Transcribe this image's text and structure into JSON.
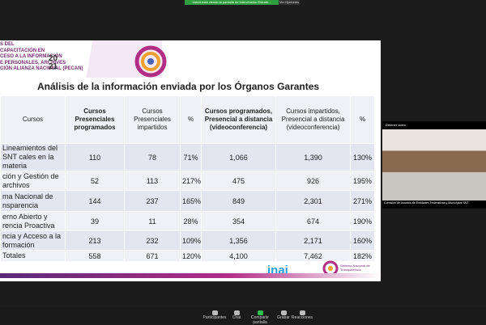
{
  "top_bar": {
    "notice": "Usted está viendo la pantalla de Intervención Estrate...",
    "options": "Ver Opciones"
  },
  "slide": {
    "program_lines": [
      "S DEL",
      "CAPACITACIÓN EN",
      "CESO A LA INFORMACIÓN",
      "E PERSONALES, ARCHIVES",
      "CIÓN ALIANZA NACIONAL (PECAN)"
    ],
    "year_top": "20",
    "year_bottom": "21",
    "title": "Análisis de la información enviada por los Órganos Garantes",
    "table": {
      "headers": [
        "Cursos",
        "Cursos Presenciales programados",
        "Cursos Presenciales impartidos",
        "%",
        "Cursos programados, Presencial a distancia (videoconferencia)",
        "Cursos impartidos, Presencial a distancia (videoconferencia)",
        "%"
      ],
      "rows": [
        [
          "Lineamientos del SNT cales en la materia",
          "110",
          "78",
          "71%",
          "1,066",
          "1,390",
          "130%"
        ],
        [
          "ción y Gestión de archivos",
          "52",
          "113",
          "217%",
          "475",
          "926",
          "195%"
        ],
        [
          "ma Nacional de nsparencia",
          "144",
          "237",
          "165%",
          "849",
          "2,301",
          "271%"
        ],
        [
          "erno Abierto y rencia Proactiva",
          "39",
          "11",
          "28%",
          "354",
          "674",
          "190%"
        ],
        [
          "ncia y Acceso a la formación",
          "213",
          "232",
          "109%",
          "1,356",
          "2,171",
          "160%"
        ],
        [
          "Totales",
          "558",
          "671",
          "120%",
          "4,100",
          "7,462",
          "182%"
        ]
      ]
    },
    "logo_inai": "inai",
    "logo_snt": "Sistema Nacional de Transparencia"
  },
  "video": {
    "label": "Detener video",
    "caption": "Comisión de Asuntos de Entidades Federativas y Municipios SNT"
  },
  "toolbar": [
    "Participantes",
    "Chat",
    "Compartir pantalla",
    "Grabar",
    "Reacciones"
  ]
}
